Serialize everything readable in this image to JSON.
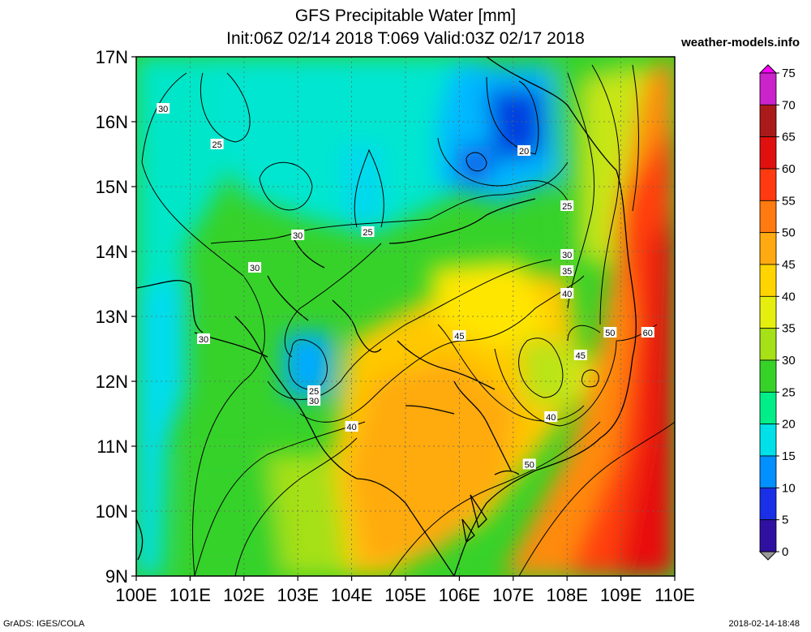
{
  "header": {
    "title_line1": "GFS Precipitable Water [mm]",
    "title_line2": "Init:06Z 02/14 2018 T:069 Valid:03Z 02/17 2018",
    "site": "weather-models.info"
  },
  "footer": {
    "left": "GrADS: IGES/COLA",
    "right": "2018-02-14-18:48"
  },
  "map": {
    "lat_labels": [
      "17N",
      "16N",
      "15N",
      "14N",
      "13N",
      "12N",
      "11N",
      "10N",
      "9N"
    ],
    "lon_labels": [
      "100E",
      "101E",
      "102E",
      "103E",
      "104E",
      "105E",
      "106E",
      "107E",
      "108E",
      "109E",
      "110E"
    ],
    "lat_range": [
      9,
      17
    ],
    "lon_range": [
      100,
      110
    ],
    "contour_labels": [
      {
        "text": "30",
        "lon": 100.5,
        "lat": 16.2
      },
      {
        "text": "25",
        "lon": 101.5,
        "lat": 15.65
      },
      {
        "text": "20",
        "lon": 107.2,
        "lat": 15.55
      },
      {
        "text": "25",
        "lon": 108.0,
        "lat": 14.7
      },
      {
        "text": "30",
        "lon": 103.0,
        "lat": 14.25
      },
      {
        "text": "25",
        "lon": 104.3,
        "lat": 14.3
      },
      {
        "text": "30",
        "lon": 102.2,
        "lat": 13.75
      },
      {
        "text": "30",
        "lon": 108.0,
        "lat": 13.95
      },
      {
        "text": "35",
        "lon": 108.0,
        "lat": 13.7
      },
      {
        "text": "40",
        "lon": 108.0,
        "lat": 13.35
      },
      {
        "text": "30",
        "lon": 101.25,
        "lat": 12.65
      },
      {
        "text": "45",
        "lon": 106.0,
        "lat": 12.7
      },
      {
        "text": "50",
        "lon": 108.8,
        "lat": 12.75
      },
      {
        "text": "60",
        "lon": 109.5,
        "lat": 12.75
      },
      {
        "text": "45",
        "lon": 108.25,
        "lat": 12.4
      },
      {
        "text": "25",
        "lon": 103.3,
        "lat": 11.85
      },
      {
        "text": "30",
        "lon": 103.3,
        "lat": 11.7
      },
      {
        "text": "40",
        "lon": 107.7,
        "lat": 11.45
      },
      {
        "text": "40",
        "lon": 104.0,
        "lat": 11.3
      },
      {
        "text": "50",
        "lon": 107.3,
        "lat": 10.72
      }
    ]
  },
  "colorbar": {
    "labels": [
      "75",
      "70",
      "65",
      "60",
      "55",
      "50",
      "45",
      "40",
      "35",
      "30",
      "25",
      "20",
      "15",
      "10",
      "5",
      "0"
    ],
    "colors": [
      "#ff00ff",
      "#cc22cc",
      "#aa1a1a",
      "#e01010",
      "#ff3a10",
      "#ff7a10",
      "#ffaa10",
      "#ffd400",
      "#e6ee10",
      "#a6e016",
      "#36d22a",
      "#00ee88",
      "#00e0e8",
      "#0090ff",
      "#1a30e6",
      "#3010a0",
      "#600070",
      "#999999"
    ]
  }
}
